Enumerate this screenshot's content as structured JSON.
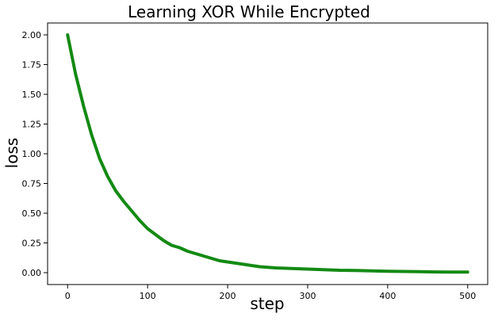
{
  "chart_data": {
    "type": "line",
    "title": "Learning XOR While Encrypted",
    "xlabel": "step",
    "ylabel": "loss",
    "xlim": [
      -25,
      525
    ],
    "ylim": [
      -0.1,
      2.1
    ],
    "xticks": [
      0,
      100,
      200,
      300,
      400,
      500
    ],
    "yticks": [
      0.0,
      0.25,
      0.5,
      0.75,
      1.0,
      1.25,
      1.5,
      1.75,
      2.0
    ],
    "xtick_labels": [
      "0",
      "100",
      "200",
      "300",
      "400",
      "500"
    ],
    "ytick_labels": [
      "0.00",
      "0.25",
      "0.50",
      "0.75",
      "1.00",
      "1.25",
      "1.50",
      "1.75",
      "2.00"
    ],
    "grid": false,
    "legend": "none",
    "series": [
      {
        "color": "#138a13",
        "x": [
          0,
          10,
          20,
          30,
          40,
          50,
          60,
          70,
          80,
          90,
          100,
          110,
          120,
          130,
          140,
          150,
          160,
          170,
          180,
          190,
          200,
          220,
          240,
          260,
          280,
          300,
          320,
          340,
          360,
          380,
          400,
          420,
          440,
          460,
          480,
          500
        ],
        "y": [
          2.0,
          1.67,
          1.4,
          1.16,
          0.96,
          0.81,
          0.69,
          0.6,
          0.52,
          0.44,
          0.37,
          0.32,
          0.27,
          0.23,
          0.21,
          0.18,
          0.16,
          0.14,
          0.12,
          0.1,
          0.09,
          0.07,
          0.05,
          0.04,
          0.035,
          0.03,
          0.025,
          0.02,
          0.018,
          0.015,
          0.012,
          0.01,
          0.008,
          0.006,
          0.005,
          0.005
        ]
      }
    ]
  }
}
